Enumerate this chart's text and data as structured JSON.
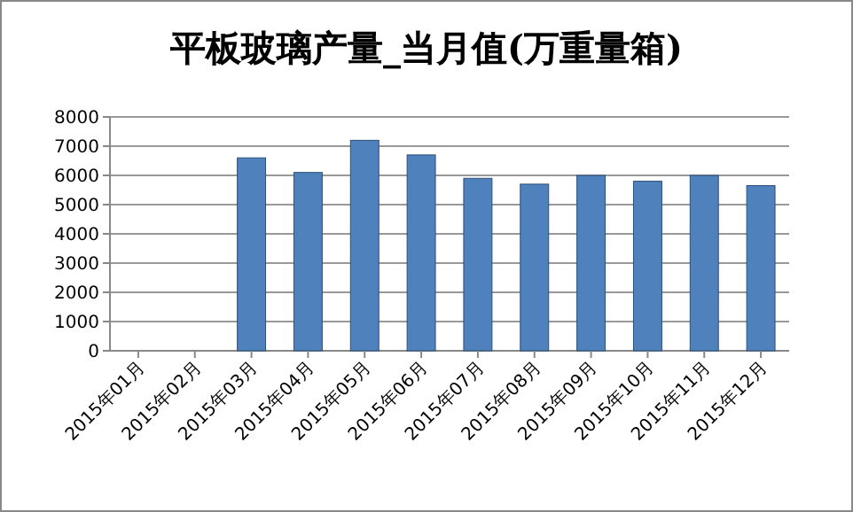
{
  "chart_data": {
    "type": "bar",
    "title": "平板玻璃产量_当月值(万重量箱)",
    "categories": [
      "2015年01月",
      "2015年02月",
      "2015年03月",
      "2015年04月",
      "2015年05月",
      "2015年06月",
      "2015年07月",
      "2015年08月",
      "2015年09月",
      "2015年10月",
      "2015年11月",
      "2015年12月"
    ],
    "values": [
      null,
      null,
      6600,
      6100,
      7200,
      6700,
      5900,
      5700,
      6000,
      5800,
      6000,
      5650
    ],
    "color": "#4f81bd",
    "ylim": [
      0,
      8000
    ],
    "yticks": [
      0,
      1000,
      2000,
      3000,
      4000,
      5000,
      6000,
      7000,
      8000
    ],
    "grid": true
  }
}
